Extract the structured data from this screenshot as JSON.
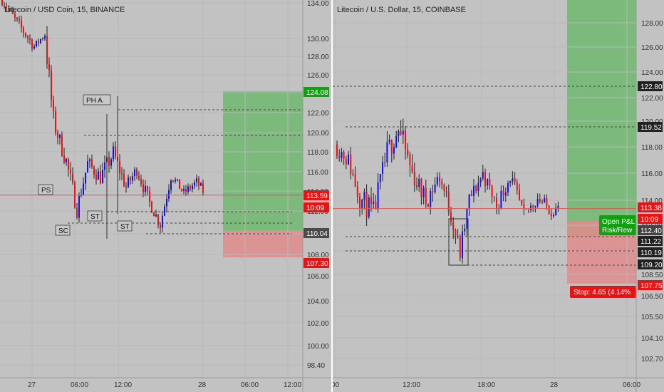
{
  "chart_data": [
    {
      "type": "candlestick",
      "title": "Litecoin / USD Coin, 15, BINANCE",
      "y_ticks": [
        "134.00",
        "130.00",
        "128.00",
        "126.00",
        "124.00",
        "122.00",
        "120.00",
        "118.00",
        "116.00",
        "114.00",
        "112.00",
        "110.00",
        "108.00",
        "106.00",
        "104.00",
        "102.00",
        "100.00",
        "98.40"
      ],
      "x_ticks": [
        "27",
        "06:00",
        "12:00",
        "28",
        "06:00",
        "12:00"
      ],
      "price_tags": [
        {
          "text": "124.08",
          "price": 124.08,
          "color": "#12a012"
        },
        {
          "text": "113.59",
          "price": 113.59,
          "color": "#ee1111"
        },
        {
          "text": "10:09",
          "price": 112.6,
          "color": "#ee1111"
        },
        {
          "text": "110.04",
          "price": 110.04,
          "color": "#4a4a4a"
        },
        {
          "text": "107.30",
          "price": 107.3,
          "color": "#ee1111"
        }
      ],
      "annotations": [
        "PH A",
        "PS",
        "SC",
        "ST",
        "ST"
      ],
      "position": {
        "target": 124.08,
        "entry": 110.04,
        "stop": 107.3
      },
      "current_price": 113.59
    },
    {
      "type": "candlestick",
      "title": "Litecoin / U.S. Dollar, 15, COINBASE",
      "y_ticks": [
        "128.00",
        "126.00",
        "124.00",
        "122.00",
        "120.00",
        "118.00",
        "116.00",
        "114.00",
        "112.00",
        "110.00",
        "108.50",
        "106.50",
        "105.50",
        "104.10",
        "102.70"
      ],
      "x_ticks": [
        "00",
        "12:00",
        "18:00",
        "28",
        "06:00"
      ],
      "price_tags": [
        {
          "text": "122.80",
          "price": 122.8,
          "color": "#222222"
        },
        {
          "text": "119.52",
          "price": 119.52,
          "color": "#222222"
        },
        {
          "text": "113.38",
          "price": 113.38,
          "color": "#ee1111"
        },
        {
          "text": "10:09",
          "price": 112.85,
          "color": "#ee1111"
        },
        {
          "text": "112.40",
          "price": 112.4,
          "color": "#444444"
        },
        {
          "text": "111.22",
          "price": 111.22,
          "color": "#222222"
        },
        {
          "text": "110.19",
          "price": 110.19,
          "color": "#222222"
        },
        {
          "text": "109.20",
          "price": 109.2,
          "color": "#222222"
        },
        {
          "text": "107.75",
          "price": 107.75,
          "color": "#ee1111"
        }
      ],
      "stop_label": "Stop: 4.65 (4.14%",
      "pnl_label": [
        "Open P&L",
        "Risk/Rew"
      ],
      "position": {
        "entry": 112.4,
        "stop": 107.75
      },
      "current_price": 113.38
    }
  ],
  "colors": {
    "up": "#1111ee",
    "down": "#ee1111",
    "profit": "#6fb86f",
    "loss": "#e08b8b"
  }
}
